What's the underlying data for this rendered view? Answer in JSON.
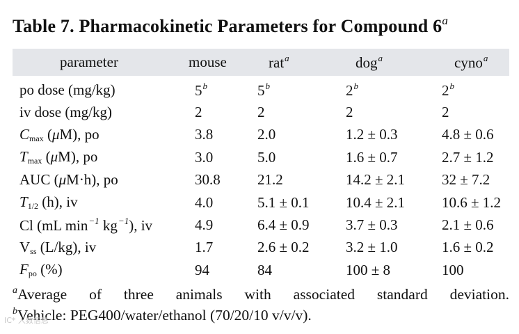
{
  "title": {
    "text": "Table 7. Pharmacokinetic Parameters for Compound 6",
    "mark": "a"
  },
  "columns": [
    {
      "label": "parameter",
      "mark": ""
    },
    {
      "label": "mouse",
      "mark": ""
    },
    {
      "label": "rat",
      "mark": "a"
    },
    {
      "label": "dog",
      "mark": "a"
    },
    {
      "label": "cyno",
      "mark": "a"
    }
  ],
  "rows": [
    {
      "param": {
        "pre": "",
        "sym": "",
        "sub": "",
        "post": "po dose (mg/kg)"
      },
      "values": [
        {
          "v": "5",
          "m": "b"
        },
        {
          "v": "5",
          "m": "b"
        },
        {
          "v": "2",
          "m": "b"
        },
        {
          "v": "2",
          "m": "b"
        }
      ]
    },
    {
      "param": {
        "pre": "",
        "sym": "",
        "sub": "",
        "post": "iv dose (mg/kg)"
      },
      "values": [
        {
          "v": "2",
          "m": ""
        },
        {
          "v": "2",
          "m": ""
        },
        {
          "v": "2",
          "m": ""
        },
        {
          "v": "2",
          "m": ""
        }
      ]
    },
    {
      "param": {
        "pre": "",
        "sym": "C",
        "sub": "max",
        "post": " (",
        "mu": "μ",
        "post2": "M), po"
      },
      "values": [
        {
          "v": "3.8",
          "m": ""
        },
        {
          "v": "2.0",
          "m": ""
        },
        {
          "v": "1.2 ± 0.3",
          "m": ""
        },
        {
          "v": "4.8 ± 0.6",
          "m": ""
        }
      ]
    },
    {
      "param": {
        "pre": "",
        "sym": "T",
        "sub": "max",
        "post": " (",
        "mu": "μ",
        "post2": "M), po"
      },
      "values": [
        {
          "v": "3.0",
          "m": ""
        },
        {
          "v": "5.0",
          "m": ""
        },
        {
          "v": "1.6 ± 0.7",
          "m": ""
        },
        {
          "v": "2.7 ± 1.2",
          "m": ""
        }
      ]
    },
    {
      "param": {
        "pre": "AUC (",
        "sym": "",
        "sub": "",
        "post": "",
        "mu": "μ",
        "post2": "M·h), po"
      },
      "values": [
        {
          "v": "30.8",
          "m": ""
        },
        {
          "v": "21.2",
          "m": ""
        },
        {
          "v": "14.2 ± 2.1",
          "m": ""
        },
        {
          "v": "32 ± 7.2",
          "m": ""
        }
      ]
    },
    {
      "param": {
        "pre": "",
        "sym": "T",
        "sub": "1/2",
        "post": " (h), iv"
      },
      "values": [
        {
          "v": "4.0",
          "m": ""
        },
        {
          "v": "5.1 ± 0.1",
          "m": ""
        },
        {
          "v": "10.4 ± 2.1",
          "m": ""
        },
        {
          "v": "10.6 ± 1.2",
          "m": ""
        }
      ]
    },
    {
      "param": {
        "pre": "",
        "sym": "",
        "sub": "",
        "post": "Cl (mL min",
        "sup1": "−1",
        "post2": " kg",
        "sup2": "−1",
        "post3": "), iv"
      },
      "values": [
        {
          "v": "4.9",
          "m": ""
        },
        {
          "v": "6.4 ± 0.9",
          "m": ""
        },
        {
          "v": "3.7 ± 0.3",
          "m": ""
        },
        {
          "v": "2.1 ± 0.6",
          "m": ""
        }
      ]
    },
    {
      "param": {
        "pre": "V",
        "sym": "",
        "sub": "ss",
        "post": " (L/kg), iv"
      },
      "values": [
        {
          "v": "1.7",
          "m": ""
        },
        {
          "v": "2.6 ± 0.2",
          "m": ""
        },
        {
          "v": "3.2 ± 1.0",
          "m": ""
        },
        {
          "v": "1.6 ± 0.2",
          "m": ""
        }
      ]
    },
    {
      "param": {
        "pre": "",
        "sym": "F",
        "sub": "po",
        "post": " (%)"
      },
      "values": [
        {
          "v": "94",
          "m": ""
        },
        {
          "v": "84",
          "m": ""
        },
        {
          "v": "100 ± 8",
          "m": ""
        },
        {
          "v": "100",
          "m": ""
        }
      ]
    }
  ],
  "footnotes": [
    {
      "mark": "a",
      "text": "Average of three animals with associated standard deviation."
    },
    {
      "mark": "b",
      "text": "Vehicle: PEG400/water/ethanol (70/20/10 v/v/v)."
    }
  ],
  "watermark": "IC* 人数信息"
}
